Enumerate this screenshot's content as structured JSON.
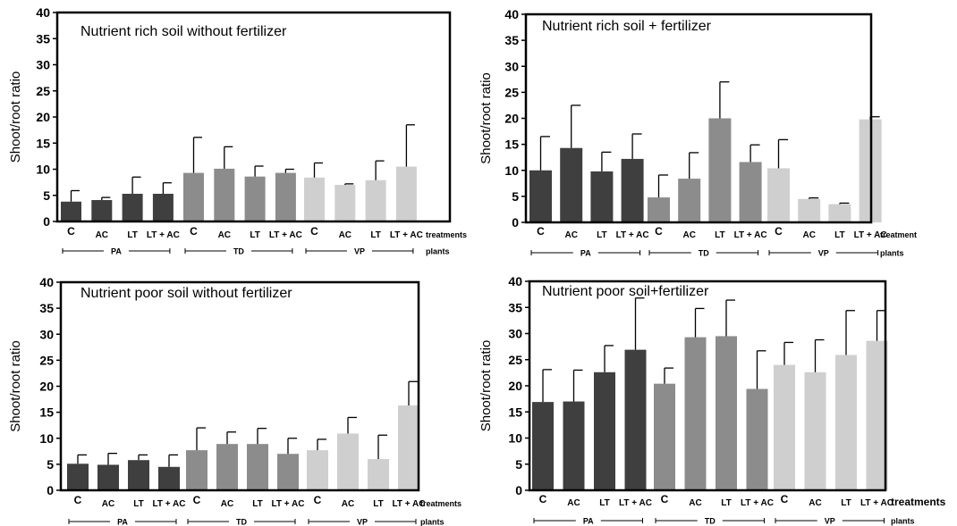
{
  "colors": {
    "PA": "#3f3f3f",
    "TD": "#8c8c8c",
    "VP": "#cfcfcf",
    "axis": "#000000"
  },
  "chart_data": [
    {
      "type": "bar",
      "title": "Nutrient rich soil without fertilizer",
      "ylabel": "Shoot/root ratio",
      "ylim": [
        0,
        40
      ],
      "yticks": [
        "0",
        "5",
        "10",
        "15",
        "20",
        "25",
        "30",
        "35",
        "40"
      ],
      "categories": [
        "C",
        "AC",
        "LT",
        "LT + AC"
      ],
      "treatments_label": "treatments",
      "plants_label": "plants",
      "groups": [
        {
          "name": "PA",
          "values": [
            3.8,
            4.1,
            5.3,
            5.3
          ],
          "errors": [
            2.1,
            0.5,
            3.2,
            2.1
          ]
        },
        {
          "name": "TD",
          "values": [
            9.3,
            10.1,
            8.6,
            9.3
          ],
          "errors": [
            6.8,
            4.2,
            2.0,
            0.7
          ]
        },
        {
          "name": "VP",
          "values": [
            8.4,
            7.0,
            7.9,
            10.5
          ],
          "errors": [
            2.8,
            0.2,
            3.7,
            8.0
          ]
        }
      ]
    },
    {
      "type": "bar",
      "title": "Nutrient rich soil + fertilizer",
      "ylabel": "Shoot/root ratio",
      "ylim": [
        0,
        40
      ],
      "yticks": [
        "0",
        "5",
        "10",
        "15",
        "20",
        "25",
        "30",
        "35",
        "40"
      ],
      "categories": [
        "C",
        "AC",
        "LT",
        "LT + AC"
      ],
      "treatments_label": "treatment",
      "plants_label": "plants",
      "groups": [
        {
          "name": "PA",
          "values": [
            10.0,
            14.3,
            9.8,
            12.2
          ],
          "errors": [
            6.5,
            8.2,
            3.7,
            4.8
          ]
        },
        {
          "name": "TD",
          "values": [
            4.8,
            8.4,
            20.0,
            11.6
          ],
          "errors": [
            4.3,
            5.0,
            7.0,
            3.3
          ]
        },
        {
          "name": "VP",
          "values": [
            10.4,
            4.5,
            3.5,
            19.8
          ],
          "errors": [
            5.5,
            0.2,
            0.2,
            0.5
          ]
        }
      ]
    },
    {
      "type": "bar",
      "title": "Nutrient poor soil without fertilizer",
      "ylabel": "Shoot/root ratio",
      "ylim": [
        0,
        40
      ],
      "yticks": [
        "0",
        "5",
        "10",
        "15",
        "20",
        "25",
        "30",
        "35",
        "40"
      ],
      "categories": [
        "C",
        "AC",
        "LT",
        "LT + AC"
      ],
      "treatments_label": "treatments",
      "plants_label": "plants",
      "groups": [
        {
          "name": "PA",
          "values": [
            5.1,
            4.9,
            5.8,
            4.5
          ],
          "errors": [
            1.7,
            2.2,
            1.0,
            2.3
          ]
        },
        {
          "name": "TD",
          "values": [
            7.7,
            8.9,
            8.9,
            7.0
          ],
          "errors": [
            4.3,
            2.3,
            3.0,
            3.0
          ]
        },
        {
          "name": "VP",
          "values": [
            7.7,
            10.9,
            6.0,
            16.3
          ],
          "errors": [
            2.1,
            3.1,
            4.6,
            4.6
          ]
        }
      ]
    },
    {
      "type": "bar",
      "title": "Nutrient poor soil+fertilizer",
      "ylabel": "Shoot/root ratio",
      "ylim": [
        0,
        40
      ],
      "yticks": [
        "0",
        "5",
        "10",
        "15",
        "20",
        "25",
        "30",
        "35",
        "40"
      ],
      "categories": [
        "C",
        "AC",
        "LT",
        "LT + AC"
      ],
      "treatments_label": "treatments",
      "plants_label": "plants",
      "groups": [
        {
          "name": "PA",
          "values": [
            16.9,
            17.0,
            22.6,
            26.9
          ],
          "errors": [
            6.2,
            6.0,
            5.1,
            9.9
          ]
        },
        {
          "name": "TD",
          "values": [
            20.4,
            29.3,
            29.5,
            19.4
          ],
          "errors": [
            3.0,
            5.5,
            6.9,
            7.3
          ]
        },
        {
          "name": "VP",
          "values": [
            24.0,
            22.6,
            25.9,
            28.6
          ],
          "errors": [
            4.3,
            6.2,
            8.5,
            5.8
          ]
        }
      ]
    }
  ]
}
